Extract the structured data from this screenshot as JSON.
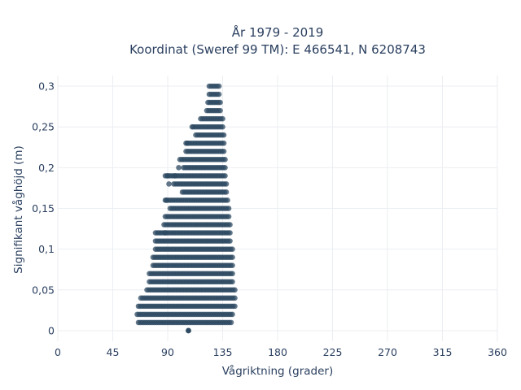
{
  "chart_data": {
    "type": "scatter",
    "title_line1": "År 1979 - 2019",
    "title_line2": "Koordinat (Sweref 99 TM): E 466541, N 6208743",
    "xlabel": "Vågriktning (grader)",
    "ylabel": "Signifikant våghöjd (m)",
    "xlim": [
      0,
      360
    ],
    "ylim": [
      -0.013,
      0.313
    ],
    "x_ticks": [
      0,
      45,
      90,
      135,
      180,
      225,
      270,
      315,
      360
    ],
    "x_tick_labels": [
      "0",
      "45",
      "90",
      "135",
      "180",
      "225",
      "270",
      "315",
      "360"
    ],
    "y_ticks": [
      0,
      0.05,
      0.1,
      0.15,
      0.2,
      0.25,
      0.3
    ],
    "y_tick_labels": [
      "0",
      "0,05",
      "0,1",
      "0,15",
      "0,2",
      "0,25",
      "0,3"
    ],
    "grid": true,
    "legend": "none",
    "marker_color": "#2e4a62",
    "bands": [
      {
        "y": 0.0,
        "xmin": 107,
        "xmax": 107
      },
      {
        "y": 0.01,
        "xmin": 66,
        "xmax": 142
      },
      {
        "y": 0.02,
        "xmin": 65,
        "xmax": 143
      },
      {
        "y": 0.03,
        "xmin": 66,
        "xmax": 145
      },
      {
        "y": 0.04,
        "xmin": 68,
        "xmax": 145
      },
      {
        "y": 0.05,
        "xmin": 73,
        "xmax": 145
      },
      {
        "y": 0.06,
        "xmin": 75,
        "xmax": 143
      },
      {
        "y": 0.07,
        "xmin": 75,
        "xmax": 143
      },
      {
        "y": 0.08,
        "xmin": 78,
        "xmax": 143
      },
      {
        "y": 0.09,
        "xmin": 78,
        "xmax": 143
      },
      {
        "y": 0.1,
        "xmin": 80,
        "xmax": 143
      },
      {
        "y": 0.11,
        "xmin": 80,
        "xmax": 141
      },
      {
        "y": 0.12,
        "xmin": 80,
        "xmax": 141
      },
      {
        "y": 0.13,
        "xmin": 87,
        "xmax": 141
      },
      {
        "y": 0.14,
        "xmin": 88,
        "xmax": 140
      },
      {
        "y": 0.15,
        "xmin": 92,
        "xmax": 140
      },
      {
        "y": 0.16,
        "xmin": 88,
        "xmax": 139
      },
      {
        "y": 0.17,
        "xmin": 102,
        "xmax": 138
      },
      {
        "y": 0.18,
        "xmin": 95,
        "xmax": 138
      },
      {
        "y": 0.19,
        "xmin": 88,
        "xmax": 137
      },
      {
        "y": 0.2,
        "xmin": 103,
        "xmax": 137
      },
      {
        "y": 0.21,
        "xmin": 100,
        "xmax": 137
      },
      {
        "y": 0.22,
        "xmin": 105,
        "xmax": 136
      },
      {
        "y": 0.23,
        "xmin": 105,
        "xmax": 136
      },
      {
        "y": 0.24,
        "xmin": 113,
        "xmax": 136
      },
      {
        "y": 0.25,
        "xmin": 111,
        "xmax": 135
      },
      {
        "y": 0.26,
        "xmin": 117,
        "xmax": 135
      },
      {
        "y": 0.27,
        "xmin": 122,
        "xmax": 133
      },
      {
        "y": 0.28,
        "xmin": 123,
        "xmax": 133
      },
      {
        "y": 0.29,
        "xmin": 124,
        "xmax": 132
      },
      {
        "y": 0.3,
        "xmin": 124,
        "xmax": 132
      }
    ],
    "outliers": [
      {
        "x": 90,
        "y": 0.19
      },
      {
        "x": 96,
        "y": 0.19
      },
      {
        "x": 91,
        "y": 0.18
      },
      {
        "x": 88,
        "y": 0.12
      },
      {
        "x": 89,
        "y": 0.16
      },
      {
        "x": 106,
        "y": 0.23
      },
      {
        "x": 110,
        "y": 0.25
      },
      {
        "x": 99,
        "y": 0.2
      },
      {
        "x": 107,
        "y": 0.0
      }
    ]
  }
}
